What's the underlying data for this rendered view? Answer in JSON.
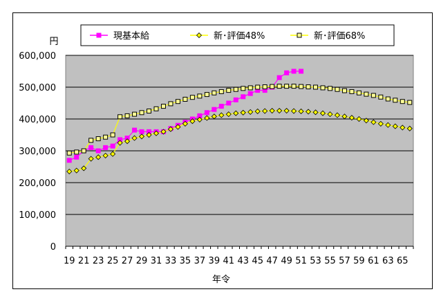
{
  "chart_data": {
    "type": "line",
    "title": "",
    "ylabel": "円",
    "xlabel": "年令",
    "x": [
      19,
      20,
      21,
      22,
      23,
      24,
      25,
      26,
      27,
      28,
      29,
      30,
      31,
      32,
      33,
      34,
      35,
      36,
      37,
      38,
      39,
      40,
      41,
      42,
      43,
      44,
      45,
      46,
      47,
      48,
      49,
      50,
      51,
      52,
      53,
      54,
      55,
      56,
      57,
      58,
      59,
      60,
      61,
      62,
      63,
      64,
      65,
      66
    ],
    "x_tick_labels": [
      "19",
      "21",
      "23",
      "25",
      "27",
      "29",
      "31",
      "33",
      "35",
      "37",
      "39",
      "41",
      "43",
      "45",
      "47",
      "49",
      "51",
      "53",
      "55",
      "57",
      "59",
      "61",
      "63",
      "65"
    ],
    "ylim": [
      0,
      600000
    ],
    "y_tick_labels": [
      "0",
      "100,000",
      "200,000",
      "300,000",
      "400,000",
      "500,000",
      "600,000"
    ],
    "grid": true,
    "legend_position": "top",
    "plot_background": "#c0c0c0",
    "series": [
      {
        "name": "現基本給",
        "color": "#ff00ff",
        "marker": "square-filled",
        "line": true,
        "values": [
          270000,
          280000,
          300000,
          310000,
          300000,
          310000,
          315000,
          335000,
          340000,
          365000,
          360000,
          360000,
          360000,
          360000,
          370000,
          380000,
          390000,
          400000,
          410000,
          420000,
          430000,
          440000,
          450000,
          460000,
          470000,
          480000,
          490000,
          490000,
          500000,
          530000,
          545000,
          550000,
          550000,
          null,
          null,
          null,
          null,
          null,
          null,
          null,
          null,
          null,
          null,
          null,
          null,
          null,
          null,
          null
        ]
      },
      {
        "name": "新･評価48%",
        "color": "#ffff00",
        "marker": "diamond-yellow",
        "line": true,
        "values": [
          235000,
          238000,
          245000,
          275000,
          280000,
          285000,
          290000,
          325000,
          330000,
          340000,
          345000,
          350000,
          355000,
          360000,
          368000,
          375000,
          385000,
          393000,
          398000,
          403000,
          408000,
          412000,
          415000,
          418000,
          420000,
          422000,
          424000,
          425000,
          426000,
          426000,
          426000,
          425000,
          424000,
          423000,
          421000,
          418000,
          415000,
          412000,
          408000,
          404000,
          400000,
          395000,
          390000,
          385000,
          381000,
          377000,
          373000,
          370000
        ]
      },
      {
        "name": "新･評価68%",
        "color": "#ffff00",
        "marker": "square-hollow",
        "line": true,
        "values": [
          293000,
          296000,
          300000,
          333000,
          338000,
          343000,
          350000,
          407000,
          410000,
          415000,
          420000,
          425000,
          432000,
          440000,
          448000,
          455000,
          462000,
          468000,
          472000,
          477000,
          482000,
          486000,
          490000,
          493000,
          496000,
          498000,
          500000,
          501000,
          502000,
          503000,
          503000,
          503000,
          502000,
          501000,
          500000,
          498000,
          496000,
          493000,
          489000,
          486000,
          482000,
          478000,
          474000,
          469000,
          463000,
          459000,
          455000,
          452000
        ]
      }
    ]
  }
}
